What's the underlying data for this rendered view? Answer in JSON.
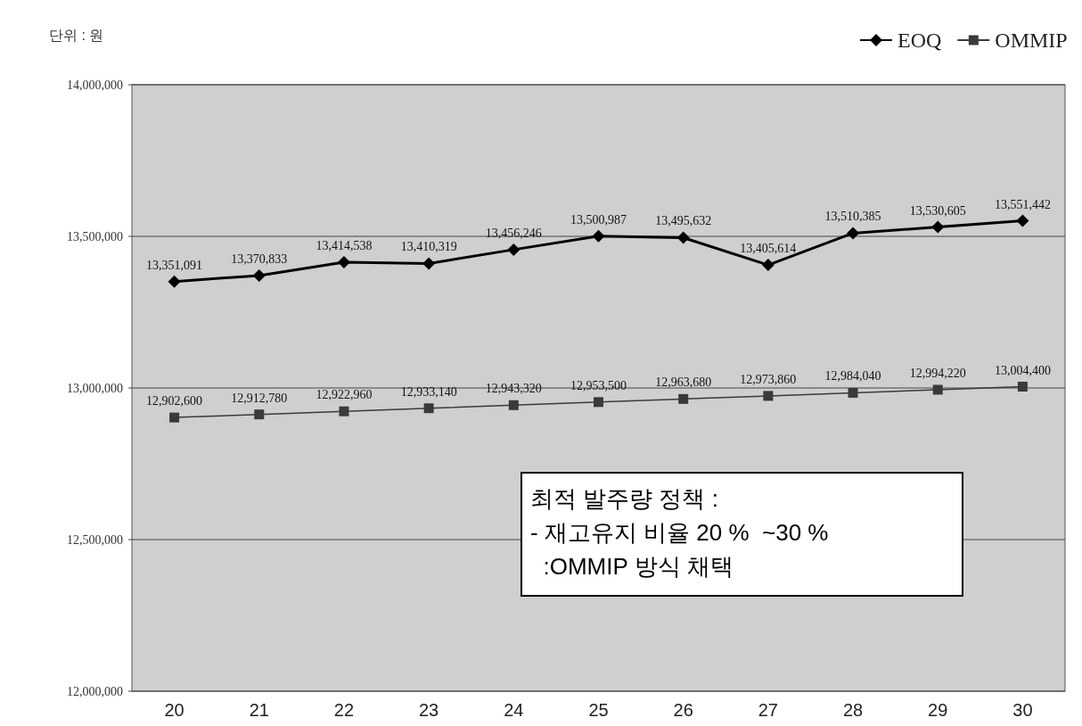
{
  "chart_data": {
    "type": "line",
    "categories": [
      "20",
      "21",
      "22",
      "23",
      "24",
      "25",
      "26",
      "27",
      "28",
      "29",
      "30"
    ],
    "series": [
      {
        "name": "EOQ",
        "color": "#000000",
        "marker": "diamond",
        "values": [
          13351091,
          13370833,
          13414538,
          13410319,
          13456246,
          13500987,
          13495632,
          13405614,
          13510385,
          13530605,
          13551442
        ],
        "value_labels": [
          "13,351,091",
          "13,370,833",
          "13,414,538",
          "13,410,319",
          "13,456,246",
          "13,500,987",
          "13,495,632",
          "13,405,614",
          "13,510,385",
          "13,530,605",
          "13,551,442"
        ]
      },
      {
        "name": "OMMIP",
        "color": "#3a3a3a",
        "marker": "square",
        "values": [
          12902600,
          12912780,
          12922960,
          12933140,
          12943320,
          12953500,
          12963680,
          12973860,
          12984040,
          12994220,
          13004400
        ],
        "value_labels": [
          "12,902,600",
          "12,912,780",
          "12,922,960",
          "12,933,140",
          "12,943,320",
          "12,953,500",
          "12,963,680",
          "12,973,860",
          "12,984,040",
          "12,994,220",
          "13,004,400"
        ]
      }
    ],
    "ylim": [
      12000000,
      14000000
    ],
    "yticks": [
      {
        "value": 12000000,
        "label": "12,000,000"
      },
      {
        "value": 12500000,
        "label": "12,500,000"
      },
      {
        "value": 13000000,
        "label": "13,000,000"
      },
      {
        "value": 13500000,
        "label": "13,500,000"
      },
      {
        "value": 14000000,
        "label": "14,000,000"
      }
    ],
    "grid": "y",
    "legend": "top right",
    "annotations": [
      "단위 : 원",
      "최적 발주량 정책 :\n- 재고유지 비율 20 %  ~30 %\n  :OMMIP 방식 채택"
    ]
  }
}
